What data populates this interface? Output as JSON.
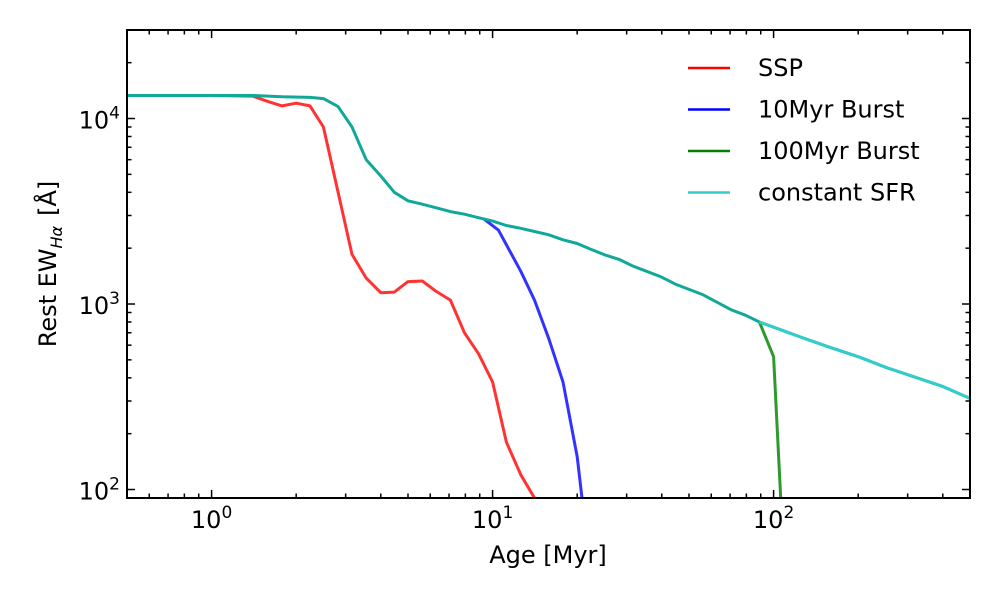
{
  "chart_data": {
    "type": "line",
    "title": "",
    "xlabel": "Age [Myr]",
    "ylabel_prefix": "Rest EW",
    "ylabel_subscript": "Hα",
    "ylabel_unit": "[Å]",
    "xscale": "log",
    "yscale": "log",
    "xlim": [
      0.5,
      500
    ],
    "ylim": [
      90,
      30000
    ],
    "xticks": [
      {
        "value": 1,
        "base": "10",
        "exp": "0"
      },
      {
        "value": 10,
        "base": "10",
        "exp": "1"
      },
      {
        "value": 100,
        "base": "10",
        "exp": "2"
      }
    ],
    "yticks": [
      {
        "value": 100,
        "base": "10",
        "exp": "2"
      },
      {
        "value": 1000,
        "base": "10",
        "exp": "3"
      },
      {
        "value": 10000,
        "base": "10",
        "exp": "4"
      }
    ],
    "grid": false,
    "legend_position": "top-right",
    "series": [
      {
        "name": "SSP",
        "legend_color": "#ff0000",
        "color": "#ff3333",
        "points": [
          [
            0.5,
            13300
          ],
          [
            1.0,
            13300
          ],
          [
            1.4,
            13200
          ],
          [
            1.6,
            12300
          ],
          [
            1.78,
            11700
          ],
          [
            2.0,
            12100
          ],
          [
            2.24,
            11700
          ],
          [
            2.5,
            9000
          ],
          [
            2.82,
            4000
          ],
          [
            3.16,
            1850
          ],
          [
            3.55,
            1380
          ],
          [
            4.0,
            1150
          ],
          [
            4.47,
            1160
          ],
          [
            5.0,
            1320
          ],
          [
            5.62,
            1330
          ],
          [
            6.3,
            1170
          ],
          [
            7.08,
            1050
          ],
          [
            7.94,
            700
          ],
          [
            8.91,
            540
          ],
          [
            10.0,
            380
          ],
          [
            11.2,
            180
          ],
          [
            12.6,
            120
          ],
          [
            14.1,
            90
          ]
        ]
      },
      {
        "name": "10Myr Burst",
        "legend_color": "#0000ff",
        "color": "#3333ff",
        "points": [
          [
            9.3,
            2880
          ],
          [
            10.5,
            2500
          ],
          [
            12.6,
            1500
          ],
          [
            14.1,
            1050
          ],
          [
            15.85,
            650
          ],
          [
            17.8,
            380
          ],
          [
            20.0,
            150
          ],
          [
            20.8,
            90
          ]
        ]
      },
      {
        "name": "100Myr Burst",
        "legend_color": "#008000",
        "color": "#2e9a2e",
        "points": [
          [
            89,
            800
          ],
          [
            100,
            520
          ],
          [
            106,
            90
          ]
        ]
      },
      {
        "name": "constant SFR",
        "legend_color": "#33cccc",
        "color": "#33cccc",
        "points": [
          [
            0.5,
            13300
          ],
          [
            1.0,
            13300
          ],
          [
            1.4,
            13300
          ],
          [
            1.78,
            13100
          ],
          [
            2.24,
            13000
          ],
          [
            2.5,
            12800
          ],
          [
            2.82,
            11600
          ],
          [
            3.16,
            9000
          ],
          [
            3.55,
            6000
          ],
          [
            4.0,
            4900
          ],
          [
            4.47,
            4000
          ],
          [
            5.0,
            3600
          ],
          [
            5.62,
            3450
          ],
          [
            6.3,
            3300
          ],
          [
            7.08,
            3150
          ],
          [
            7.94,
            3050
          ],
          [
            8.91,
            2920
          ],
          [
            10.0,
            2800
          ],
          [
            11.2,
            2650
          ],
          [
            12.6,
            2560
          ],
          [
            14.1,
            2460
          ],
          [
            15.85,
            2360
          ],
          [
            17.8,
            2220
          ],
          [
            20.0,
            2120
          ],
          [
            22.4,
            1970
          ],
          [
            25.1,
            1840
          ],
          [
            28.2,
            1740
          ],
          [
            31.6,
            1600
          ],
          [
            39.8,
            1400
          ],
          [
            44.7,
            1280
          ],
          [
            56.2,
            1120
          ],
          [
            63.1,
            1020
          ],
          [
            70.8,
            930
          ],
          [
            79.4,
            870
          ],
          [
            89,
            800
          ],
          [
            100,
            750
          ],
          [
            126,
            660
          ],
          [
            158,
            585
          ],
          [
            200,
            520
          ],
          [
            251,
            455
          ],
          [
            316,
            405
          ],
          [
            398,
            360
          ],
          [
            500,
            310
          ]
        ]
      }
    ],
    "overlap_color": "#11a89a"
  }
}
